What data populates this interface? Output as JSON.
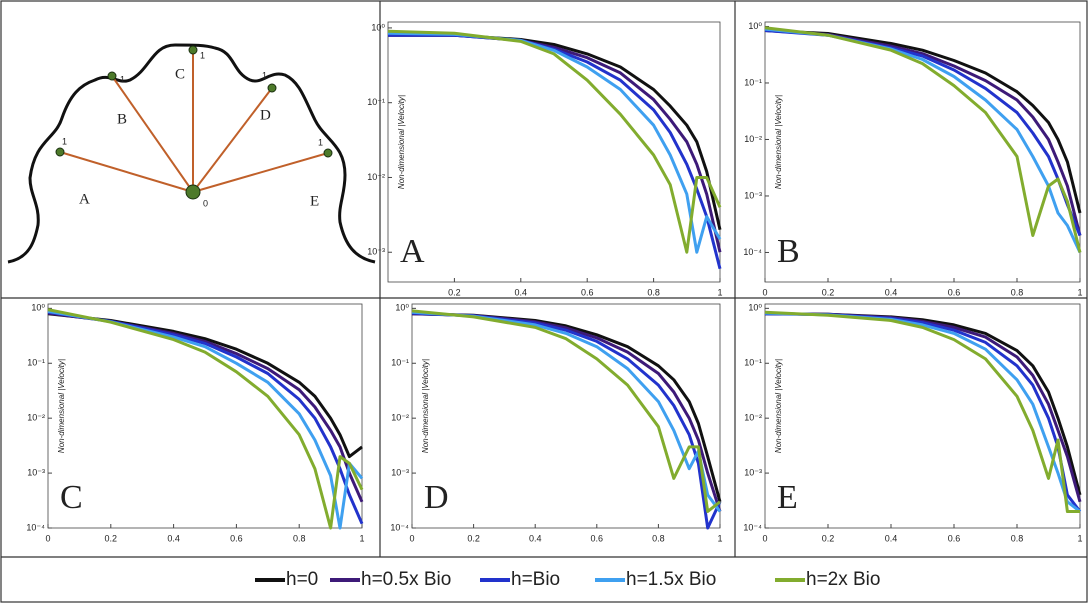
{
  "diagram": {
    "labels": [
      "A",
      "B",
      "C",
      "D",
      "E"
    ],
    "origin": "0",
    "ends": [
      "1",
      "1",
      "1",
      "1",
      "1"
    ]
  },
  "legend": [
    {
      "name": "h=0",
      "color": "#111111"
    },
    {
      "name": "h=0.5x Bio",
      "color": "#3d1a78"
    },
    {
      "name": "h=Bio",
      "color": "#2233cc"
    },
    {
      "name": "h=1.5x Bio",
      "color": "#3fa0f0"
    },
    {
      "name": "h=2x Bio",
      "color": "#82ac2e"
    }
  ],
  "chart_data": [
    {
      "type": "line",
      "title": "A",
      "ylabel": "Non-dimensional |Velocity|",
      "log_y": true,
      "x": [
        0,
        0.2,
        0.4,
        0.5,
        0.6,
        0.7,
        0.8,
        0.85,
        0.9,
        0.93,
        0.96,
        1
      ],
      "series": [
        {
          "values": [
            0.8,
            0.8,
            0.7,
            0.6,
            0.45,
            0.3,
            0.15,
            0.09,
            0.05,
            0.03,
            0.012,
            0.002
          ]
        },
        {
          "values": [
            0.8,
            0.8,
            0.68,
            0.55,
            0.4,
            0.25,
            0.11,
            0.06,
            0.03,
            0.015,
            0.006,
            0.001
          ]
        },
        {
          "values": [
            0.8,
            0.8,
            0.68,
            0.52,
            0.35,
            0.2,
            0.08,
            0.04,
            0.015,
            0.007,
            0.003,
            0.0006
          ]
        },
        {
          "values": [
            0.85,
            0.82,
            0.68,
            0.5,
            0.3,
            0.15,
            0.05,
            0.02,
            0.006,
            0.001,
            0.003,
            0.0015
          ]
        },
        {
          "values": [
            0.9,
            0.85,
            0.66,
            0.45,
            0.2,
            0.07,
            0.02,
            0.008,
            0.001,
            0.01,
            0.01,
            0.004
          ]
        }
      ],
      "xlim": [
        0,
        1
      ],
      "xticks": [
        0.2,
        0.4,
        0.6,
        0.8,
        1
      ],
      "ylim": [
        0.0004,
        1.2
      ],
      "yticks": [
        {
          "value": 0.001,
          "label": "10⁻³"
        },
        {
          "value": 0.01,
          "label": "10⁻²"
        },
        {
          "value": 0.1,
          "label": "10⁻¹"
        },
        {
          "value": 1,
          "label": "10⁰"
        }
      ]
    },
    {
      "type": "line",
      "title": "B",
      "ylabel": "Non-dimensional |Velocity|",
      "log_y": true,
      "x": [
        0,
        0.2,
        0.4,
        0.5,
        0.6,
        0.7,
        0.8,
        0.85,
        0.9,
        0.93,
        0.96,
        1
      ],
      "series": [
        {
          "values": [
            0.85,
            0.75,
            0.5,
            0.38,
            0.25,
            0.15,
            0.07,
            0.04,
            0.02,
            0.01,
            0.004,
            0.0005
          ]
        },
        {
          "values": [
            0.85,
            0.72,
            0.45,
            0.33,
            0.2,
            0.11,
            0.05,
            0.025,
            0.01,
            0.004,
            0.0015,
            0.0002
          ]
        },
        {
          "values": [
            0.85,
            0.7,
            0.42,
            0.3,
            0.17,
            0.08,
            0.03,
            0.013,
            0.005,
            0.002,
            0.0007,
            0.0002
          ]
        },
        {
          "values": [
            0.9,
            0.7,
            0.4,
            0.26,
            0.13,
            0.05,
            0.015,
            0.005,
            0.0015,
            0.0005,
            0.0003,
            0.0001
          ]
        },
        {
          "values": [
            0.95,
            0.7,
            0.38,
            0.22,
            0.09,
            0.03,
            0.005,
            0.0002,
            0.0015,
            0.002,
            0.0008,
            0.0001
          ]
        }
      ],
      "xlim": [
        0,
        1
      ],
      "xticks": [
        0,
        0.2,
        0.4,
        0.6,
        0.8,
        1
      ],
      "ylim": [
        3e-05,
        1.2
      ],
      "yticks": [
        {
          "value": 0.0001,
          "label": "10⁻⁴"
        },
        {
          "value": 0.001,
          "label": "10⁻³"
        },
        {
          "value": 0.01,
          "label": "10⁻²"
        },
        {
          "value": 0.1,
          "label": "10⁻¹"
        },
        {
          "value": 1,
          "label": "10⁰"
        }
      ]
    },
    {
      "type": "line",
      "title": "C",
      "ylabel": "Non-dimensional |Velocity|",
      "log_y": true,
      "x": [
        0,
        0.2,
        0.4,
        0.5,
        0.6,
        0.7,
        0.8,
        0.85,
        0.9,
        0.93,
        0.96,
        1
      ],
      "series": [
        {
          "values": [
            0.8,
            0.6,
            0.38,
            0.28,
            0.18,
            0.1,
            0.045,
            0.025,
            0.01,
            0.005,
            0.002,
            0.003
          ]
        },
        {
          "values": [
            0.82,
            0.58,
            0.35,
            0.25,
            0.15,
            0.08,
            0.033,
            0.016,
            0.006,
            0.003,
            0.001,
            0.0003
          ]
        },
        {
          "values": [
            0.85,
            0.58,
            0.33,
            0.23,
            0.13,
            0.065,
            0.022,
            0.01,
            0.003,
            0.0012,
            0.0004,
            0.00012
          ]
        },
        {
          "values": [
            0.88,
            0.57,
            0.3,
            0.2,
            0.1,
            0.045,
            0.012,
            0.004,
            0.0009,
            0.0001,
            0.0015,
            0.0008
          ]
        },
        {
          "values": [
            0.95,
            0.56,
            0.27,
            0.16,
            0.07,
            0.025,
            0.005,
            0.0012,
            0.0001,
            0.002,
            0.0015,
            0.0005
          ]
        }
      ],
      "xlim": [
        0,
        1
      ],
      "xticks": [
        0,
        0.2,
        0.4,
        0.6,
        0.8,
        1
      ],
      "ylim": [
        0.0001,
        1.2
      ],
      "yticks": [
        {
          "value": 0.0001,
          "label": "10⁻⁴"
        },
        {
          "value": 0.001,
          "label": "10⁻³"
        },
        {
          "value": 0.01,
          "label": "10⁻²"
        },
        {
          "value": 0.1,
          "label": "10⁻¹"
        },
        {
          "value": 1,
          "label": "10⁰"
        }
      ]
    },
    {
      "type": "line",
      "title": "D",
      "ylabel": "Non-dimensional |Velocity|",
      "log_y": true,
      "x": [
        0,
        0.2,
        0.4,
        0.5,
        0.6,
        0.7,
        0.8,
        0.85,
        0.9,
        0.93,
        0.96,
        1
      ],
      "series": [
        {
          "values": [
            0.8,
            0.75,
            0.6,
            0.48,
            0.33,
            0.2,
            0.09,
            0.05,
            0.02,
            0.008,
            0.002,
            0.0003
          ]
        },
        {
          "values": [
            0.8,
            0.74,
            0.57,
            0.44,
            0.29,
            0.16,
            0.065,
            0.03,
            0.01,
            0.004,
            0.001,
            0.0002
          ]
        },
        {
          "values": [
            0.82,
            0.73,
            0.54,
            0.4,
            0.25,
            0.12,
            0.04,
            0.017,
            0.005,
            0.0015,
            0.0001,
            0.0003
          ]
        },
        {
          "values": [
            0.85,
            0.72,
            0.5,
            0.35,
            0.2,
            0.08,
            0.02,
            0.006,
            0.0012,
            0.0025,
            0.0004,
            0.0002
          ]
        },
        {
          "values": [
            0.9,
            0.7,
            0.45,
            0.28,
            0.12,
            0.04,
            0.007,
            0.0008,
            0.003,
            0.003,
            0.0002,
            0.0003
          ]
        }
      ],
      "xlim": [
        0,
        1
      ],
      "xticks": [
        0,
        0.2,
        0.4,
        0.6,
        0.8,
        1
      ],
      "ylim": [
        0.0001,
        1.2
      ],
      "yticks": [
        {
          "value": 0.0001,
          "label": "10⁻⁴"
        },
        {
          "value": 0.001,
          "label": "10⁻³"
        },
        {
          "value": 0.01,
          "label": "10⁻²"
        },
        {
          "value": 0.1,
          "label": "10⁻¹"
        },
        {
          "value": 1,
          "label": "10⁰"
        }
      ]
    },
    {
      "type": "line",
      "title": "E",
      "ylabel": "Non-dimensional |Velocity|",
      "log_y": true,
      "x": [
        0,
        0.2,
        0.4,
        0.5,
        0.6,
        0.7,
        0.8,
        0.85,
        0.9,
        0.93,
        0.96,
        1
      ],
      "series": [
        {
          "values": [
            0.8,
            0.78,
            0.7,
            0.62,
            0.5,
            0.35,
            0.17,
            0.09,
            0.03,
            0.01,
            0.003,
            0.0004
          ]
        },
        {
          "values": [
            0.8,
            0.78,
            0.68,
            0.58,
            0.45,
            0.3,
            0.13,
            0.06,
            0.018,
            0.006,
            0.002,
            0.0003
          ]
        },
        {
          "values": [
            0.8,
            0.77,
            0.66,
            0.55,
            0.4,
            0.24,
            0.09,
            0.04,
            0.01,
            0.003,
            0.0004,
            0.0002
          ]
        },
        {
          "values": [
            0.82,
            0.76,
            0.63,
            0.5,
            0.35,
            0.18,
            0.05,
            0.018,
            0.003,
            0.001,
            0.0003,
            0.0002
          ]
        },
        {
          "values": [
            0.85,
            0.75,
            0.6,
            0.45,
            0.27,
            0.12,
            0.025,
            0.006,
            0.0008,
            0.004,
            0.0002,
            0.0002
          ]
        }
      ],
      "xlim": [
        0,
        1
      ],
      "xticks": [
        0,
        0.2,
        0.4,
        0.6,
        0.8,
        1
      ],
      "ylim": [
        0.0001,
        1.2
      ],
      "yticks": [
        {
          "value": 0.0001,
          "label": "10⁻⁴"
        },
        {
          "value": 0.001,
          "label": "10⁻³"
        },
        {
          "value": 0.01,
          "label": "10⁻²"
        },
        {
          "value": 0.1,
          "label": "10⁻¹"
        },
        {
          "value": 1,
          "label": "10⁰"
        }
      ]
    }
  ]
}
